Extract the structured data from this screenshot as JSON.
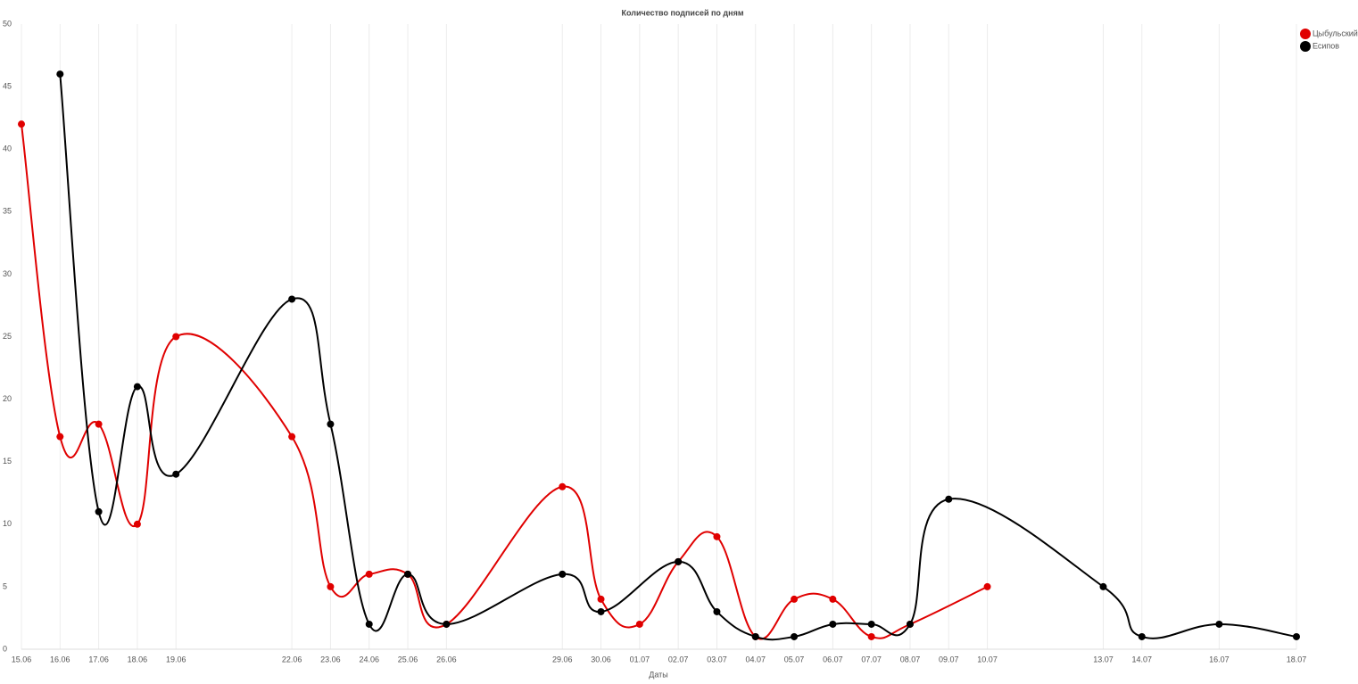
{
  "chart_data": {
    "type": "line",
    "title": "Количество подписей по дням",
    "xlabel": "Даты",
    "x": [
      "15.06",
      "16.06",
      "17.06",
      "18.06",
      "19.06",
      "22.06",
      "23.06",
      "24.06",
      "25.06",
      "26.06",
      "29.06",
      "30.06",
      "01.07",
      "02.07",
      "03.07",
      "04.07",
      "05.07",
      "06.07",
      "07.07",
      "08.07",
      "09.07",
      "10.07",
      "13.07",
      "14.07",
      "16.07",
      "18.07"
    ],
    "series": [
      {
        "name": "Цыбульский",
        "color": "#e00000",
        "x": [
          "15.06",
          "16.06",
          "17.06",
          "18.06",
          "19.06",
          "22.06",
          "23.06",
          "24.06",
          "25.06",
          "26.06",
          "29.06",
          "30.06",
          "01.07",
          "02.07",
          "03.07",
          "04.07",
          "05.07",
          "06.07",
          "07.07",
          "08.07",
          "10.07"
        ],
        "values": [
          42,
          17,
          18,
          10,
          25,
          17,
          5,
          6,
          6,
          2,
          13,
          4,
          2,
          7,
          9,
          1,
          4,
          4,
          1,
          2,
          5
        ]
      },
      {
        "name": "Есипов",
        "color": "#000000",
        "x": [
          "16.06",
          "17.06",
          "18.06",
          "19.06",
          "22.06",
          "23.06",
          "24.06",
          "25.06",
          "26.06",
          "29.06",
          "30.06",
          "02.07",
          "03.07",
          "04.07",
          "05.07",
          "06.07",
          "07.07",
          "08.07",
          "09.07",
          "13.07",
          "14.07",
          "16.07",
          "18.07"
        ],
        "values": [
          46,
          11,
          21,
          14,
          28,
          18,
          2,
          6,
          2,
          6,
          3,
          7,
          3,
          1,
          1,
          2,
          2,
          2,
          12,
          5,
          1,
          2,
          1
        ]
      }
    ],
    "ylim": [
      0,
      50
    ],
    "yticks": [
      0,
      5,
      10,
      15,
      20,
      25,
      30,
      35,
      40,
      45,
      50
    ],
    "grid": true,
    "legend": "top-right"
  }
}
